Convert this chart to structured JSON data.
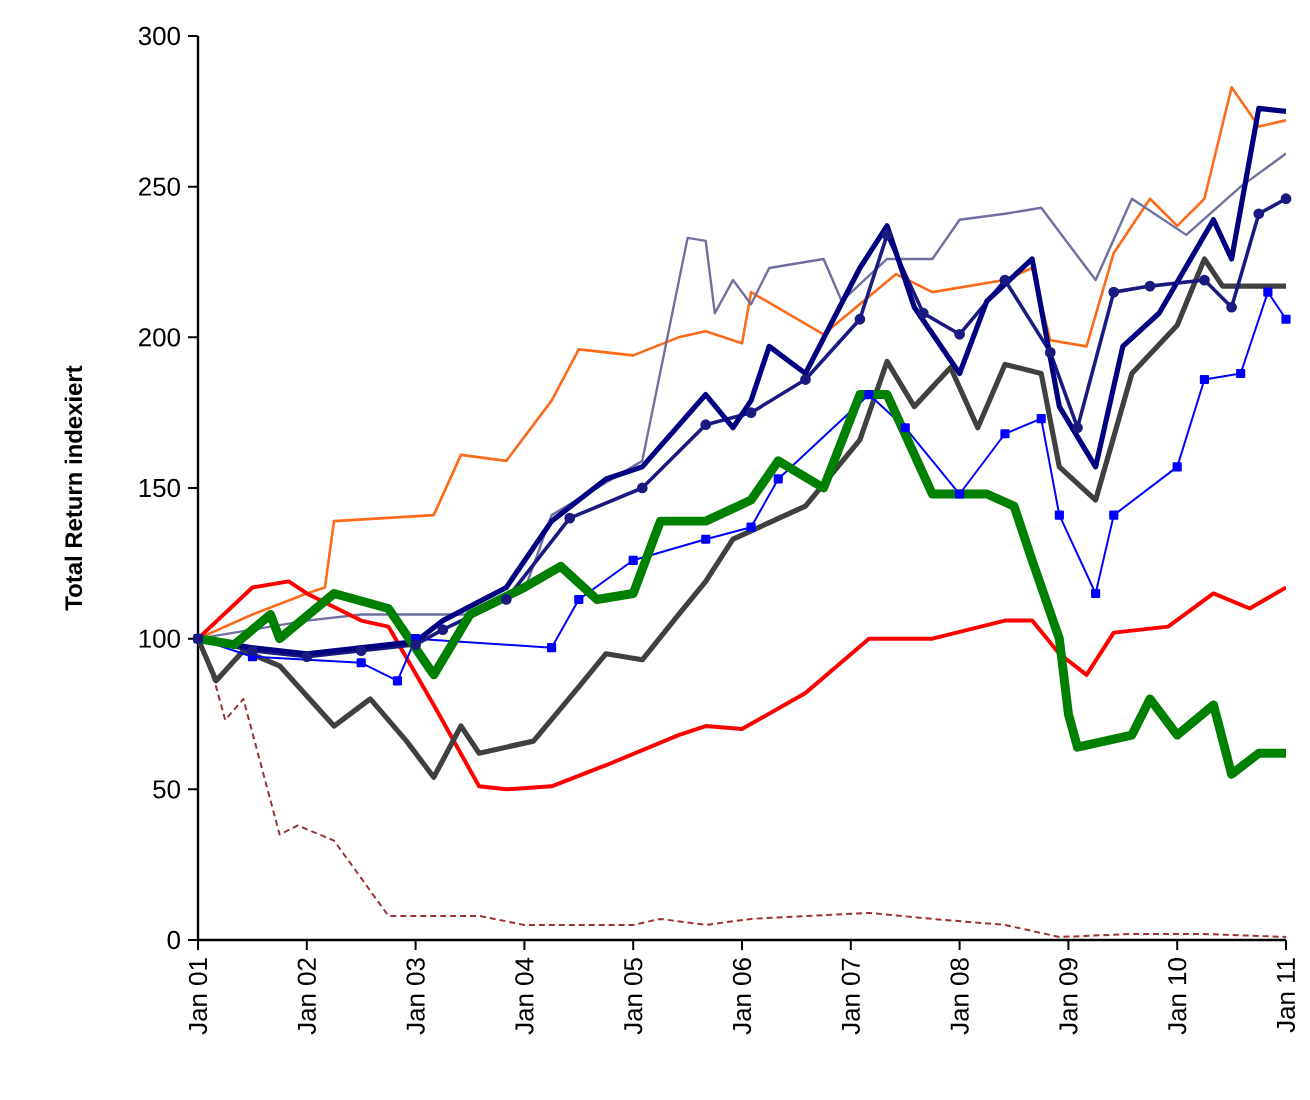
{
  "chart_data": {
    "type": "line",
    "ylabel": "Total Return indexiert",
    "xlim": [
      "2001-01",
      "2011-01"
    ],
    "ylim": [
      0,
      300
    ],
    "xticks": [
      {
        "value": "2001-01",
        "label": "Jan 01"
      },
      {
        "value": "2002-01",
        "label": "Jan 02"
      },
      {
        "value": "2003-01",
        "label": "Jan 03"
      },
      {
        "value": "2004-01",
        "label": "Jan 04"
      },
      {
        "value": "2005-01",
        "label": "Jan 05"
      },
      {
        "value": "2006-01",
        "label": "Jan 06"
      },
      {
        "value": "2007-01",
        "label": "Jan 07"
      },
      {
        "value": "2008-01",
        "label": "Jan 08"
      },
      {
        "value": "2009-01",
        "label": "Jan 09"
      },
      {
        "value": "2010-01",
        "label": "Jan 10"
      },
      {
        "value": "2011-01",
        "label": "Jan 11"
      }
    ],
    "yticks": [
      0,
      50,
      100,
      150,
      200,
      250,
      300
    ],
    "grid": false,
    "marker": "none",
    "line_style": "solid",
    "series": [
      {
        "color": "#993333",
        "line_style": "dashed",
        "x": [
          "2001-01",
          "2001-03",
          "2001-04",
          "2001-06",
          "2001-10",
          "2001-12",
          "2002-04",
          "2002-10",
          "2003-08",
          "2004-01",
          "2005-01",
          "2005-04",
          "2005-09",
          "2006-02",
          "2007-03",
          "2007-10",
          "2008-06",
          "2008-12",
          "2009-08",
          "2010-04",
          "2011-01"
        ],
        "values": [
          100,
          84,
          73,
          80,
          35,
          38,
          33,
          8,
          8,
          5,
          5,
          7,
          5,
          7,
          9,
          7,
          5,
          1,
          2,
          2,
          1
        ]
      },
      {
        "color": "#ff6a1a",
        "x": [
          "2001-01",
          "2001-07",
          "2002-01",
          "2002-03",
          "2002-04",
          "2003-03",
          "2003-06",
          "2003-11",
          "2004-04",
          "2004-07",
          "2005-01",
          "2005-06",
          "2005-09",
          "2006-01",
          "2006-02",
          "2006-10",
          "2007-06",
          "2007-10",
          "2008-06",
          "2008-09",
          "2008-11",
          "2009-03",
          "2009-06",
          "2009-10",
          "2010-01",
          "2010-04",
          "2010-07",
          "2010-10",
          "2011-01"
        ],
        "values": [
          100,
          108,
          115,
          117,
          139,
          141,
          161,
          159,
          179,
          196,
          194,
          200,
          202,
          198,
          215,
          201,
          221,
          215,
          219,
          223,
          199,
          197,
          228,
          246,
          237,
          246,
          283,
          270,
          272
        ]
      },
      {
        "color": "#7070a0",
        "x": [
          "2001-01",
          "2001-07",
          "2002-01",
          "2002-07",
          "2003-07",
          "2004-01",
          "2004-04",
          "2005-02",
          "2005-07",
          "2005-09",
          "2005-10",
          "2005-12",
          "2006-02",
          "2006-04",
          "2006-10",
          "2006-12",
          "2007-05",
          "2007-10",
          "2008-01",
          "2008-06",
          "2008-10",
          "2009-04",
          "2009-08",
          "2010-02",
          "2010-08",
          "2011-01"
        ],
        "values": [
          100,
          103,
          106,
          108,
          108,
          116,
          141,
          159,
          233,
          232,
          208,
          219,
          211,
          223,
          226,
          212,
          226,
          226,
          239,
          241,
          243,
          219,
          246,
          234,
          250,
          261
        ]
      },
      {
        "color": "#ff0000",
        "x": [
          "2001-01",
          "2001-07",
          "2001-11",
          "2002-01",
          "2002-07",
          "2002-10",
          "2003-03",
          "2003-08",
          "2003-11",
          "2004-04",
          "2004-10",
          "2005-06",
          "2005-09",
          "2006-01",
          "2006-08",
          "2007-03",
          "2007-10",
          "2008-06",
          "2008-09",
          "2008-12",
          "2009-03",
          "2009-06",
          "2009-12",
          "2010-05",
          "2010-09",
          "2011-01"
        ],
        "values": [
          100,
          117,
          119,
          115,
          106,
          104,
          78,
          51,
          50,
          51,
          58,
          68,
          71,
          70,
          82,
          100,
          100,
          106,
          106,
          95,
          88,
          102,
          104,
          115,
          110,
          117
        ]
      },
      {
        "color": "#404040",
        "x": [
          "2001-01",
          "2001-03",
          "2001-06",
          "2001-10",
          "2002-04",
          "2002-08",
          "2002-12",
          "2003-03",
          "2003-06",
          "2003-08",
          "2004-02",
          "2004-07",
          "2004-10",
          "2005-02",
          "2005-06",
          "2005-09",
          "2005-12",
          "2006-08",
          "2007-02",
          "2007-05",
          "2007-08",
          "2007-12",
          "2008-03",
          "2008-06",
          "2008-10",
          "2008-12",
          "2009-04",
          "2009-08",
          "2010-01",
          "2010-04",
          "2010-06",
          "2011-01"
        ],
        "values": [
          100,
          86,
          96,
          91,
          71,
          80,
          66,
          54,
          71,
          62,
          66,
          84,
          95,
          93,
          108,
          119,
          133,
          144,
          166,
          192,
          177,
          190,
          170,
          191,
          188,
          157,
          146,
          188,
          204,
          226,
          217,
          217
        ]
      },
      {
        "color": "#0000ff",
        "marker": "square",
        "x": [
          "2001-01",
          "2001-07",
          "2002-07",
          "2002-11",
          "2003-01",
          "2004-04",
          "2004-07",
          "2005-01",
          "2005-09",
          "2006-02",
          "2006-05",
          "2007-03",
          "2007-07",
          "2008-01",
          "2008-06",
          "2008-10",
          "2008-12",
          "2009-04",
          "2009-06",
          "2010-01",
          "2010-04",
          "2010-08",
          "2010-11",
          "2011-01"
        ],
        "values": [
          100,
          94,
          92,
          86,
          100,
          97,
          113,
          126,
          133,
          137,
          153,
          181,
          170,
          148,
          168,
          173,
          141,
          115,
          141,
          157,
          186,
          188,
          215,
          206
        ]
      },
      {
        "color": "#1a1a80",
        "marker": "circle",
        "x": [
          "2001-01",
          "2001-07",
          "2002-01",
          "2002-07",
          "2003-01",
          "2003-04",
          "2003-11",
          "2004-06",
          "2005-02",
          "2005-09",
          "2006-02",
          "2006-08",
          "2007-02",
          "2007-05",
          "2007-09",
          "2008-01",
          "2008-06",
          "2008-11",
          "2009-02",
          "2009-06",
          "2009-10",
          "2010-04",
          "2010-07",
          "2010-10",
          "2011-01"
        ],
        "values": [
          100,
          96,
          94,
          96,
          98,
          103,
          113,
          140,
          150,
          171,
          175,
          186,
          206,
          234,
          208,
          201,
          219,
          195,
          170,
          215,
          217,
          219,
          210,
          241,
          246
        ]
      },
      {
        "color": "#000080",
        "x": [
          "2001-01",
          "2001-07",
          "2002-01",
          "2002-07",
          "2003-01",
          "2003-04",
          "2003-11",
          "2004-04",
          "2004-10",
          "2005-02",
          "2005-09",
          "2005-12",
          "2006-02",
          "2006-04",
          "2006-08",
          "2007-02",
          "2007-05",
          "2007-08",
          "2008-01",
          "2008-04",
          "2008-09",
          "2008-12",
          "2009-04",
          "2009-07",
          "2009-11",
          "2010-05",
          "2010-07",
          "2010-10",
          "2011-01"
        ],
        "values": [
          100,
          97,
          95,
          97,
          99,
          106,
          117,
          139,
          153,
          157,
          181,
          170,
          179,
          197,
          188,
          223,
          237,
          210,
          188,
          212,
          226,
          177,
          157,
          197,
          208,
          239,
          226,
          276,
          275
        ]
      },
      {
        "color": "#008000",
        "x": [
          "2001-01",
          "2001-05",
          "2001-09",
          "2001-10",
          "2002-04",
          "2002-10",
          "2003-03",
          "2003-07",
          "2004-01",
          "2004-05",
          "2004-09",
          "2005-01",
          "2005-04",
          "2005-09",
          "2006-02",
          "2006-05",
          "2006-10",
          "2007-02",
          "2007-05",
          "2007-10",
          "2008-04",
          "2008-07",
          "2008-09",
          "2008-12",
          "2009-01",
          "2009-02",
          "2009-08",
          "2009-10",
          "2010-01",
          "2010-05",
          "2010-07",
          "2010-10",
          "2011-01"
        ],
        "values": [
          100,
          98,
          108,
          100,
          115,
          110,
          88,
          108,
          117,
          124,
          113,
          115,
          139,
          139,
          146,
          159,
          150,
          181,
          181,
          148,
          148,
          144,
          126,
          100,
          75,
          64,
          68,
          80,
          68,
          78,
          55,
          62,
          62
        ]
      }
    ]
  }
}
